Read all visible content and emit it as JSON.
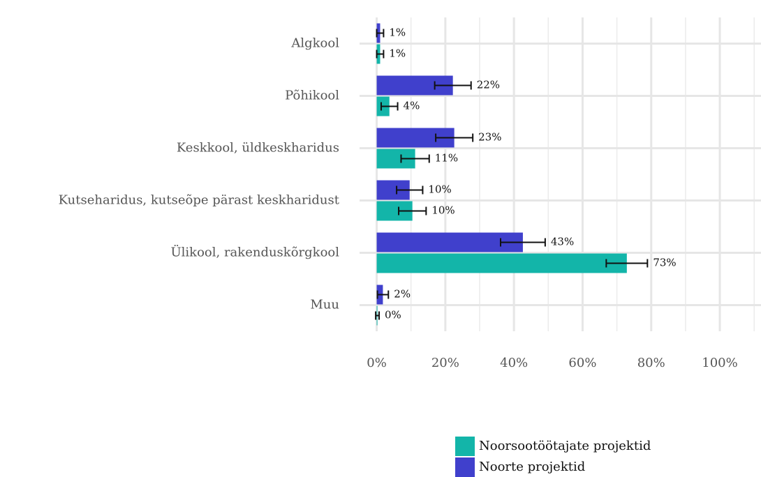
{
  "chart_data": {
    "type": "bar",
    "orientation": "horizontal",
    "categories": [
      "Algkool",
      "Põhikool",
      "Keskkool, üldkeskharidus",
      "Kutseharidus, kutseõpe pärast keskharidust",
      "Ülikool, rakenduskõrgkool",
      "Muu"
    ],
    "series": [
      {
        "name": "Noorsootöötajate projektid",
        "color": "#13b5a9",
        "values": [
          1,
          3.7,
          11.2,
          10.4,
          72.9,
          0.2
        ],
        "errors": [
          1,
          2.4,
          4.1,
          4,
          6,
          0.5
        ],
        "value_labels": [
          "1%",
          "4%",
          "11%",
          "10%",
          "73%",
          "0%"
        ]
      },
      {
        "name": "Noorte projektid",
        "color": "#4040cc",
        "values": [
          1,
          22.2,
          22.6,
          9.6,
          42.6,
          1.8
        ],
        "errors": [
          1,
          5.3,
          5.4,
          3.8,
          6.5,
          1.6
        ],
        "value_labels": [
          "1%",
          "22%",
          "23%",
          "10%",
          "43%",
          "2%"
        ]
      }
    ],
    "xlim": [
      -5,
      112
    ],
    "xticks": [
      {
        "value": 0,
        "label": "0%"
      },
      {
        "value": 20,
        "label": "20%"
      },
      {
        "value": 40,
        "label": "40%"
      },
      {
        "value": 60,
        "label": "60%"
      },
      {
        "value": 80,
        "label": "80%"
      },
      {
        "value": 100,
        "label": "100%"
      }
    ],
    "minor_xticks": [
      10,
      30,
      50,
      70,
      90,
      110
    ],
    "grid": true,
    "legend": "bottom"
  }
}
